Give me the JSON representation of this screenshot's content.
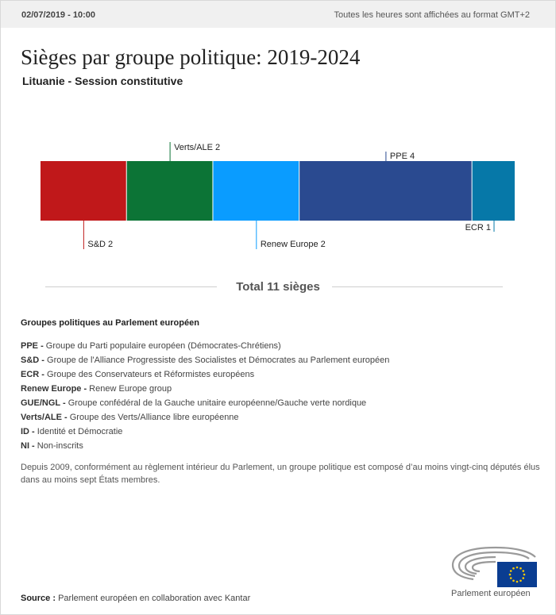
{
  "header": {
    "date": "02/07/2019 - 10:00",
    "timezone_note": "Toutes les heures sont affichées au format GMT+2"
  },
  "title": "Sièges par groupe politique: 2019-2024",
  "subtitle": "Lituanie - Session constitutive",
  "chart_data": {
    "type": "bar",
    "orientation": "horizontal-stacked",
    "segments": [
      {
        "name": "S&D",
        "value": 2,
        "color": "#c0181a",
        "label": "S&D 2",
        "label_side": "below"
      },
      {
        "name": "Verts/ALE",
        "value": 2,
        "color": "#0c7436",
        "label": "Verts/ALE 2",
        "label_side": "above"
      },
      {
        "name": "Renew Europe",
        "value": 2,
        "color": "#0a9cff",
        "label": "Renew Europe 2",
        "label_side": "below"
      },
      {
        "name": "PPE",
        "value": 4,
        "color": "#2a4a90",
        "label": "PPE 4",
        "label_side": "above"
      },
      {
        "name": "ECR",
        "value": 1,
        "color": "#0678a8",
        "label": "ECR 1",
        "label_side": "below"
      }
    ],
    "total": 11
  },
  "total_label": "Total 11 sièges",
  "groups_title": "Groupes politiques au Parlement européen",
  "groups": [
    {
      "abbr": "PPE -",
      "desc": " Groupe du Parti populaire européen (Démocrates-Chrétiens)"
    },
    {
      "abbr": "S&D -",
      "desc": " Groupe de l'Alliance Progressiste des Socialistes et Démocrates au Parlement européen"
    },
    {
      "abbr": "ECR -",
      "desc": " Groupe des Conservateurs et Réformistes européens"
    },
    {
      "abbr": "Renew Europe -",
      "desc": " Renew Europe group"
    },
    {
      "abbr": "GUE/NGL -",
      "desc": " Groupe confédéral de la Gauche unitaire européenne/Gauche verte nordique"
    },
    {
      "abbr": "Verts/ALE -",
      "desc": " Groupe des Verts/Alliance libre européenne"
    },
    {
      "abbr": "ID -",
      "desc": " Identité et Démocratie"
    },
    {
      "abbr": "NI -",
      "desc": " Non-inscrits"
    }
  ],
  "note": "Depuis 2009, conformément au règlement intérieur du Parlement, un groupe politique est composé d’au moins vingt-cinq députés élus dans au moins sept États membres.",
  "source": {
    "label": "Source :",
    "text": " Parlement européen en collaboration avec Kantar"
  },
  "logo": {
    "text": "Parlement européen",
    "icon": "european-parliament-logo"
  }
}
